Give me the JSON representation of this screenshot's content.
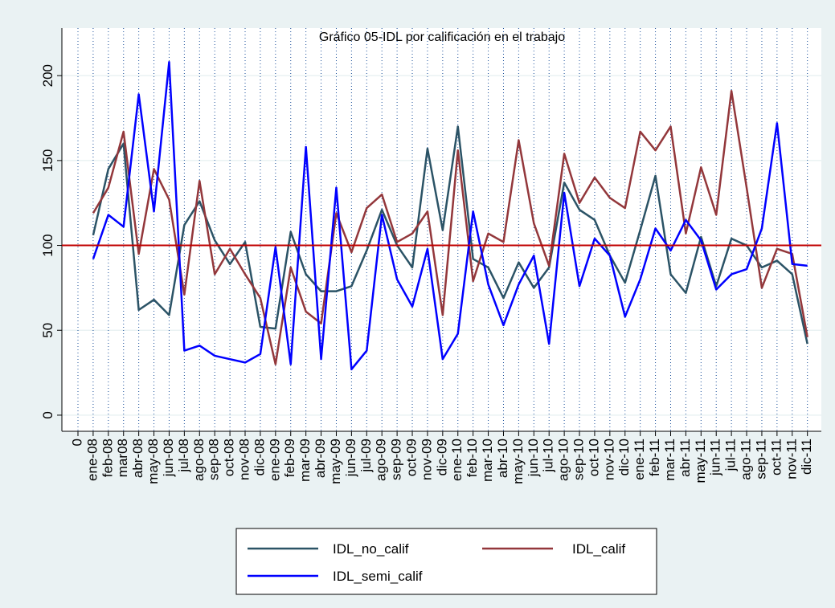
{
  "chart_data": {
    "type": "line",
    "title": "Gráfico 05-IDL por calificación en el trabajo",
    "categories": [
      "0",
      "ene-08",
      "feb-08",
      "mar08",
      "abr-08",
      "may-08",
      "jun-08",
      "jul-08",
      "ago-08",
      "sep-08",
      "oct-08",
      "nov-08",
      "dic-08",
      "ene-09",
      "feb-09",
      "mar-09",
      "abr-09",
      "may-09",
      "jun-09",
      "jul-09",
      "ago-09",
      "sep-09",
      "oct-09",
      "nov-09",
      "dic-09",
      "ene-10",
      "feb-10",
      "mar-10",
      "abr-10",
      "may-10",
      "jun-10",
      "jul-10",
      "ago-10",
      "sep-10",
      "oct-10",
      "nov-10",
      "dic-10",
      "ene-11",
      "feb-11",
      "mar-11",
      "abr-11",
      "may-11",
      "jun-11",
      "jul-11",
      "ago-11",
      "sep-11",
      "oct-11",
      "nov-11",
      "dic-11"
    ],
    "series": [
      {
        "name": "IDL_no_calif",
        "color": "#2b5366",
        "values": [
          null,
          106,
          145,
          160,
          62,
          68,
          59,
          112,
          126,
          103,
          89,
          102,
          52,
          51,
          108,
          83,
          73,
          73,
          76,
          97,
          121,
          100,
          87,
          157,
          109,
          170,
          92,
          87,
          69,
          90,
          75,
          87,
          137,
          121,
          115,
          94,
          78,
          109,
          141,
          83,
          72,
          105,
          76,
          104,
          100,
          87,
          91,
          83,
          42
        ]
      },
      {
        "name": "IDL_calif",
        "color": "#93373b",
        "values": [
          null,
          119,
          134,
          167,
          95,
          145,
          127,
          71,
          138,
          83,
          98,
          83,
          69,
          30,
          87,
          61,
          54,
          119,
          96,
          122,
          130,
          102,
          107,
          120,
          59,
          156,
          79,
          107,
          102,
          162,
          113,
          88,
          154,
          125,
          140,
          128,
          122,
          167,
          156,
          170,
          107,
          146,
          118,
          191,
          134,
          75,
          98,
          95,
          46
        ]
      },
      {
        "name": "IDL_semi_calif",
        "color": "#0000ff",
        "values": [
          null,
          92,
          118,
          111,
          189,
          120,
          208,
          38,
          41,
          35,
          33,
          31,
          36,
          99,
          30,
          158,
          33,
          134,
          27,
          38,
          118,
          80,
          64,
          98,
          33,
          48,
          120,
          77,
          53,
          77,
          94,
          42,
          131,
          76,
          104,
          94,
          58,
          80,
          110,
          97,
          115,
          103,
          74,
          83,
          86,
          110,
          172,
          89,
          88
        ]
      }
    ],
    "ylim": [
      -9.5,
      228
    ],
    "yticks": [
      0,
      50,
      100,
      150,
      200
    ],
    "refline": 100,
    "refline_color": "#c00000",
    "xgrid": true
  }
}
